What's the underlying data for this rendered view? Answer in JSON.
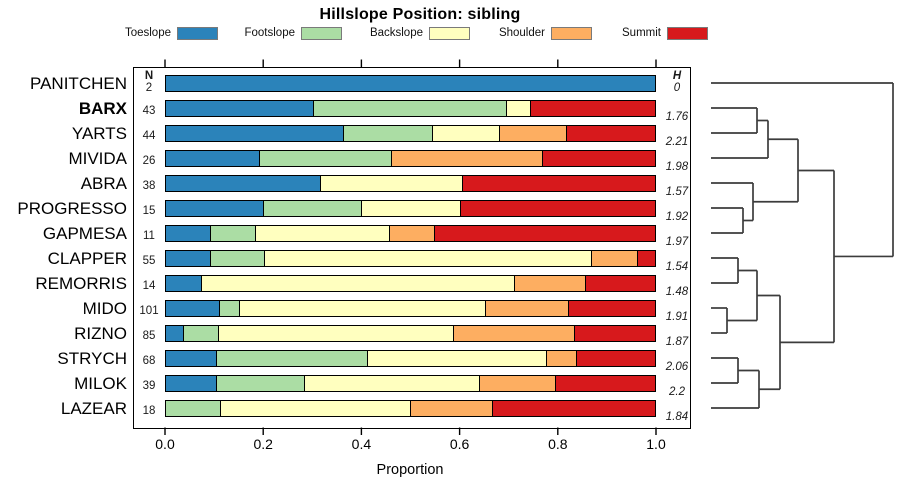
{
  "chart_data": {
    "type": "stacked-bar-horizontal",
    "title": "Hillslope Position: sibling",
    "xlabel": "Proportion",
    "xlim": [
      0,
      1
    ],
    "xtick_labels": [
      "0.0",
      "0.2",
      "0.4",
      "0.6",
      "0.8",
      "1.0"
    ],
    "grid": false,
    "legend_position": "top",
    "categories": [
      "Toeslope",
      "Footslope",
      "Backslope",
      "Shoulder",
      "Summit"
    ],
    "colors": [
      "#2B83BA",
      "#ABDDA4",
      "#FFFFBF",
      "#FDAE61",
      "#D7191C"
    ],
    "n_header": "N",
    "h_header": "H",
    "rows": [
      {
        "name": "PANITCHEN",
        "n": "2",
        "h": "0",
        "bold": false,
        "values": [
          1,
          0,
          0,
          0,
          0
        ]
      },
      {
        "name": "BARX",
        "n": "43",
        "h": "1.76",
        "bold": true,
        "values": [
          0.302,
          0.395,
          0.047,
          0,
          0.256
        ]
      },
      {
        "name": "YARTS",
        "n": "44",
        "h": "2.21",
        "bold": false,
        "values": [
          0.364,
          0.182,
          0.136,
          0.136,
          0.182
        ]
      },
      {
        "name": "MIVIDA",
        "n": "26",
        "h": "1.98",
        "bold": false,
        "values": [
          0.192,
          0.269,
          0,
          0.308,
          0.231
        ]
      },
      {
        "name": "ABRA",
        "n": "38",
        "h": "1.57",
        "bold": false,
        "values": [
          0.316,
          0,
          0.289,
          0,
          0.395
        ]
      },
      {
        "name": "PROGRESSO",
        "n": "15",
        "h": "1.92",
        "bold": false,
        "values": [
          0.2,
          0.2,
          0.2,
          0,
          0.4
        ]
      },
      {
        "name": "GAPMESA",
        "n": "11",
        "h": "1.97",
        "bold": false,
        "values": [
          0.091,
          0.091,
          0.273,
          0.091,
          0.454
        ]
      },
      {
        "name": "CLAPPER",
        "n": "55",
        "h": "1.54",
        "bold": false,
        "values": [
          0.091,
          0.109,
          0.673,
          0.091,
          0.036
        ]
      },
      {
        "name": "REMORRIS",
        "n": "14",
        "h": "1.48",
        "bold": false,
        "values": [
          0.071,
          0,
          0.643,
          0.143,
          0.143
        ]
      },
      {
        "name": "MIDO",
        "n": "101",
        "h": "1.91",
        "bold": false,
        "values": [
          0.109,
          0.04,
          0.505,
          0.168,
          0.178
        ]
      },
      {
        "name": "RIZNO",
        "n": "85",
        "h": "1.87",
        "bold": false,
        "values": [
          0.035,
          0.071,
          0.482,
          0.247,
          0.165
        ]
      },
      {
        "name": "STRYCH",
        "n": "68",
        "h": "2.06",
        "bold": false,
        "values": [
          0.103,
          0.309,
          0.368,
          0.059,
          0.161
        ]
      },
      {
        "name": "MILOK",
        "n": "39",
        "h": "2.2",
        "bold": false,
        "values": [
          0.103,
          0.179,
          0.359,
          0.154,
          0.205
        ]
      },
      {
        "name": "LAZEAR",
        "n": "18",
        "h": "1.84",
        "bold": false,
        "values": [
          0,
          0.111,
          0.389,
          0.167,
          0.333
        ]
      }
    ],
    "dendrogram": {
      "merges": [
        [
          1,
          2,
          757
        ],
        [
          14,
          3,
          768
        ],
        [
          5,
          6,
          743
        ],
        [
          4,
          16,
          753
        ],
        [
          15,
          17,
          798
        ],
        [
          7,
          8,
          738
        ],
        [
          9,
          10,
          727
        ],
        [
          19,
          20,
          757
        ],
        [
          11,
          12,
          738
        ],
        [
          22,
          13,
          759
        ],
        [
          21,
          23,
          780
        ],
        [
          18,
          24,
          834
        ],
        [
          0,
          25,
          893
        ]
      ]
    }
  }
}
